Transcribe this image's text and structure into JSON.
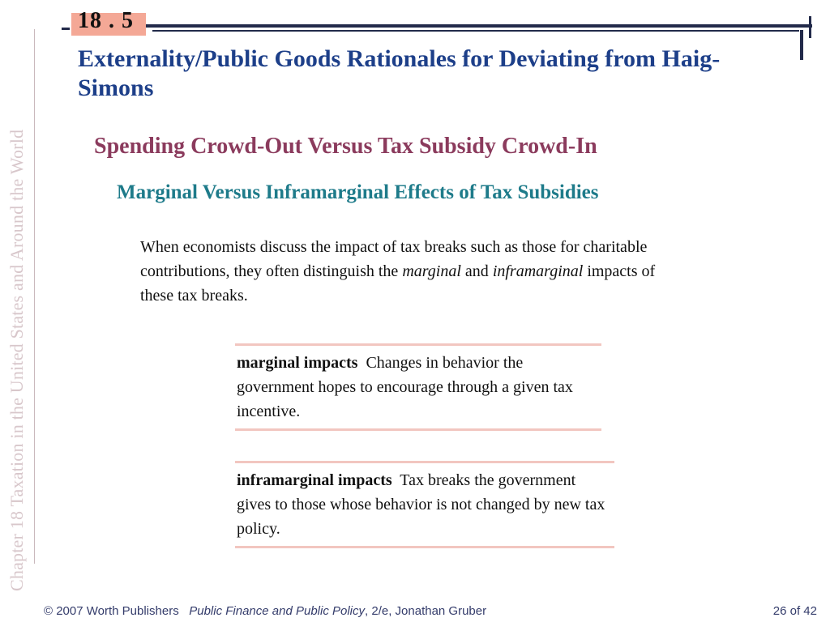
{
  "sidebar": {
    "text": "Chapter 18   Taxation in the United States and Around the World"
  },
  "header": {
    "section_number": "18 . 5",
    "title": "Externality/Public Goods Rationales for Deviating from Haig-Simons",
    "subtitle": "Spending Crowd-Out Versus Tax Subsidy Crowd-In",
    "subsubtitle": "Marginal Versus Inframarginal Effects of Tax Subsidies"
  },
  "body": {
    "para_part1": "When economists discuss the impact of tax breaks such as those for charitable contributions, they often distinguish the ",
    "para_italic1": "marginal",
    "para_part2": " and ",
    "para_italic2": "inframarginal",
    "para_part3": " impacts of these tax breaks."
  },
  "definitions": [
    {
      "term": "marginal impacts",
      "text": "Changes in behavior the government hopes to encourage through a given tax incentive."
    },
    {
      "term": "inframarginal impacts",
      "text": "Tax breaks the government gives to those whose behavior is not changed by new tax policy."
    }
  ],
  "footer": {
    "copyright": "© 2007 Worth Publishers",
    "book_title": "Public Finance and Public Policy",
    "edition_author": ", 2/e, Jonathan Gruber",
    "page_indicator": "26 of 42"
  },
  "colors": {
    "title": "#1d3f89",
    "subtitle": "#8b3b5d",
    "subsubtitle": "#1e7b8a",
    "badge": "#f4a896",
    "rule": "#222a4a",
    "definition_rule": "#f2c6c0"
  }
}
